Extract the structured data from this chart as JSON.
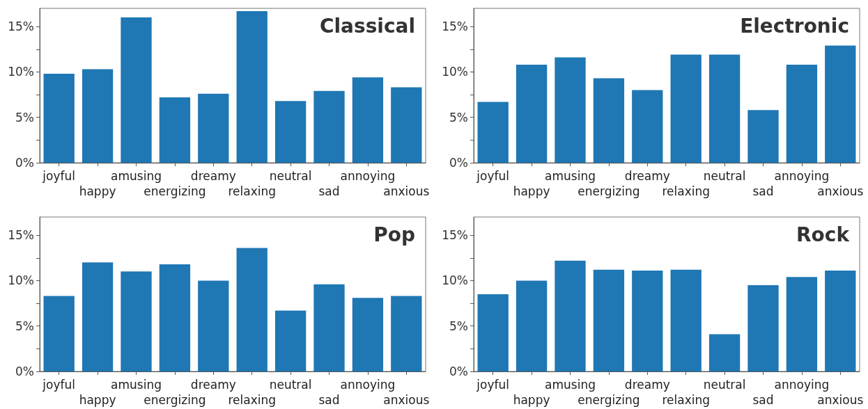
{
  "chart_data": [
    {
      "type": "bar",
      "title": "Classical",
      "categories": [
        "joyful",
        "happy",
        "amusing",
        "energizing",
        "dreamy",
        "relaxing",
        "neutral",
        "sad",
        "annoying",
        "anxious"
      ],
      "color": "#1f77b4",
      "values": [
        9.8,
        10.3,
        16.0,
        7.2,
        7.6,
        16.7,
        6.8,
        7.9,
        9.4,
        8.3
      ],
      "ylim": [
        0,
        17
      ],
      "yticks": [
        {
          "value": 0,
          "label": "0%"
        },
        {
          "value": 2.5,
          "label": null
        },
        {
          "value": 5,
          "label": "5%"
        },
        {
          "value": 7.5,
          "label": null
        },
        {
          "value": 10,
          "label": "10%"
        },
        {
          "value": 12.5,
          "label": null
        },
        {
          "value": 15,
          "label": "15%"
        }
      ],
      "grid": false
    },
    {
      "type": "bar",
      "title": "Electronic",
      "categories": [
        "joyful",
        "happy",
        "amusing",
        "energizing",
        "dreamy",
        "relaxing",
        "neutral",
        "sad",
        "annoying",
        "anxious"
      ],
      "color": "#1f77b4",
      "values": [
        6.7,
        10.8,
        11.6,
        9.3,
        8.0,
        11.9,
        11.9,
        5.8,
        10.8,
        12.9
      ],
      "ylim": [
        0,
        17
      ],
      "yticks": [
        {
          "value": 0,
          "label": "0%"
        },
        {
          "value": 2.5,
          "label": null
        },
        {
          "value": 5,
          "label": "5%"
        },
        {
          "value": 7.5,
          "label": null
        },
        {
          "value": 10,
          "label": "10%"
        },
        {
          "value": 12.5,
          "label": null
        },
        {
          "value": 15,
          "label": "15%"
        }
      ],
      "grid": false
    },
    {
      "type": "bar",
      "title": "Pop",
      "categories": [
        "joyful",
        "happy",
        "amusing",
        "energizing",
        "dreamy",
        "relaxing",
        "neutral",
        "sad",
        "annoying",
        "anxious"
      ],
      "color": "#1f77b4",
      "values": [
        8.3,
        12.0,
        11.0,
        11.8,
        10.0,
        13.6,
        6.7,
        9.6,
        8.1,
        8.3
      ],
      "ylim": [
        0,
        17
      ],
      "yticks": [
        {
          "value": 0,
          "label": "0%"
        },
        {
          "value": 2.5,
          "label": null
        },
        {
          "value": 5,
          "label": "5%"
        },
        {
          "value": 7.5,
          "label": null
        },
        {
          "value": 10,
          "label": "10%"
        },
        {
          "value": 12.5,
          "label": null
        },
        {
          "value": 15,
          "label": "15%"
        }
      ],
      "grid": false
    },
    {
      "type": "bar",
      "title": "Rock",
      "categories": [
        "joyful",
        "happy",
        "amusing",
        "energizing",
        "dreamy",
        "relaxing",
        "neutral",
        "sad",
        "annoying",
        "anxious"
      ],
      "color": "#1f77b4",
      "values": [
        8.5,
        10.0,
        12.2,
        11.2,
        11.1,
        11.2,
        4.1,
        9.5,
        10.4,
        11.1
      ],
      "ylim": [
        0,
        17
      ],
      "yticks": [
        {
          "value": 0,
          "label": "0%"
        },
        {
          "value": 2.5,
          "label": null
        },
        {
          "value": 5,
          "label": "5%"
        },
        {
          "value": 7.5,
          "label": null
        },
        {
          "value": 10,
          "label": "10%"
        },
        {
          "value": 12.5,
          "label": null
        },
        {
          "value": 15,
          "label": "15%"
        }
      ],
      "grid": false
    }
  ]
}
